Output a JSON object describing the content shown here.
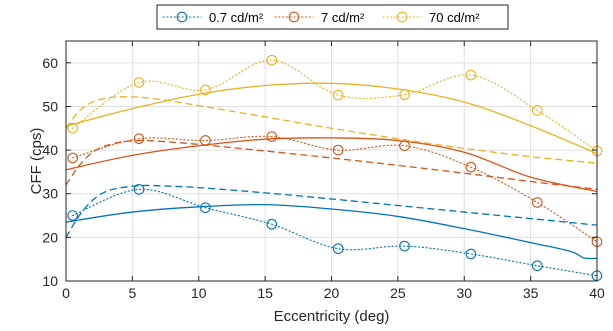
{
  "chart_data": {
    "type": "line",
    "xlabel": "Eccentricity (deg)",
    "ylabel": "CFF (cps)",
    "xlim": [
      0,
      40
    ],
    "ylim": [
      10,
      65
    ],
    "xticks": [
      0,
      5,
      10,
      15,
      20,
      25,
      30,
      35,
      40
    ],
    "yticks": [
      10,
      20,
      30,
      40,
      50,
      60
    ],
    "grid": true,
    "legend_position": "top-center",
    "legend": [
      "0.7 cd/m²",
      "7 cd/m²",
      "70 cd/m²"
    ],
    "series": [
      {
        "name": "0.7 cd/m²",
        "color": "#0072BD",
        "measured": {
          "x": [
            0.5,
            5.5,
            10.5,
            15.5,
            20.5,
            25.5,
            30.5,
            35.5,
            40
          ],
          "y": [
            25,
            31,
            26.8,
            23,
            17.4,
            18,
            16.2,
            13.5,
            11.2
          ]
        },
        "fit_solid": {
          "x": [
            0,
            5,
            10,
            15,
            20,
            25,
            30,
            35,
            38,
            39,
            40
          ],
          "y": [
            23.5,
            25.8,
            27,
            27.5,
            26.5,
            24.8,
            22,
            18.8,
            16.8,
            15.3,
            15.2
          ]
        },
        "fit_dashed": {
          "x": [
            0,
            1,
            2,
            3,
            4,
            5,
            6,
            8,
            10,
            15,
            20,
            25,
            30,
            35,
            40
          ],
          "y": [
            20,
            25,
            28.5,
            30.5,
            31.3,
            31.7,
            31.9,
            31.7,
            31.4,
            30.2,
            28.8,
            27.3,
            25.8,
            24.3,
            22.8
          ]
        }
      },
      {
        "name": "7 cd/m²",
        "color": "#D95319",
        "measured": {
          "x": [
            0.5,
            5.5,
            10.5,
            15.5,
            20.5,
            25.5,
            30.5,
            35.5,
            40
          ],
          "y": [
            38.2,
            42.6,
            42.2,
            43.1,
            40,
            41,
            36.1,
            28,
            19
          ]
        },
        "fit_solid": {
          "x": [
            0,
            5,
            10,
            15,
            20,
            25,
            30,
            35,
            40
          ],
          "y": [
            35.5,
            38.8,
            41,
            42.5,
            42.8,
            42.2,
            39.5,
            33.8,
            30.5
          ]
        },
        "fit_dashed": {
          "x": [
            0,
            1,
            2,
            3,
            4,
            5,
            6,
            8,
            10,
            15,
            20,
            25,
            30,
            35,
            40
          ],
          "y": [
            32,
            36.5,
            39.5,
            41,
            41.8,
            42.1,
            42.2,
            41.8,
            41.3,
            39.8,
            38.2,
            36.5,
            34.7,
            32.8,
            31
          ]
        }
      },
      {
        "name": "70 cd/m²",
        "color": "#EDB120",
        "measured": {
          "x": [
            0.5,
            5.5,
            10.5,
            15.5,
            20.5,
            25.5,
            30.5,
            35.5,
            40
          ],
          "y": [
            45,
            55.5,
            53.8,
            60.6,
            52.6,
            52.7,
            57.2,
            49.1,
            39.8
          ]
        },
        "fit_solid": {
          "x": [
            0,
            5,
            10,
            15,
            20,
            25,
            30,
            35,
            40
          ],
          "y": [
            45.5,
            49.5,
            52.8,
            54.8,
            55.3,
            54,
            51,
            45.6,
            39.2
          ]
        },
        "fit_dashed": {
          "x": [
            0,
            1,
            2,
            3,
            4,
            5,
            6,
            8,
            10,
            15,
            20,
            25,
            30,
            35,
            40
          ],
          "y": [
            45,
            49,
            51,
            51.9,
            52.2,
            52.2,
            52,
            51.2,
            50.2,
            47.6,
            45,
            42.6,
            40.4,
            38.5,
            37
          ]
        }
      }
    ]
  }
}
